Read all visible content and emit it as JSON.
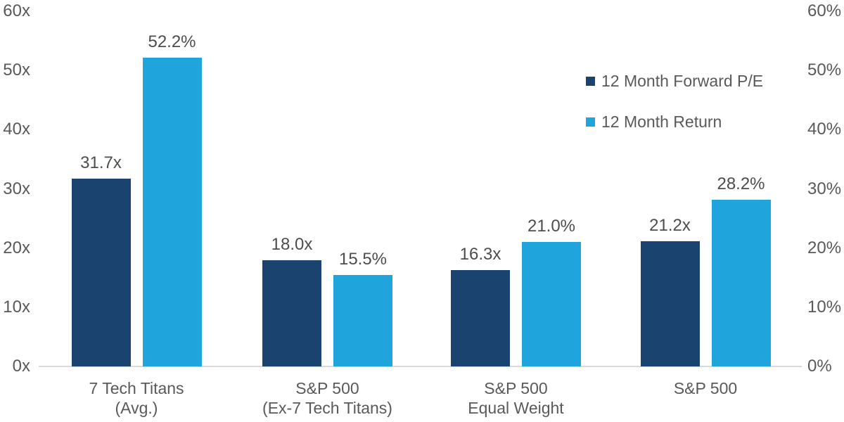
{
  "chart_data": {
    "type": "bar",
    "title": "",
    "categories": [
      "7 Tech Titans\n(Avg.)",
      "S&P 500\n(Ex-7 Tech Titans)",
      "S&P 500\nEqual Weight",
      "S&P 500"
    ],
    "series": [
      {
        "name": "12 Month Forward P/E",
        "color": "#1B4370",
        "axis": "left",
        "values": [
          31.7,
          18.0,
          16.3,
          21.2
        ],
        "value_labels": [
          "31.7x",
          "18.0x",
          "16.3x",
          "21.2x"
        ]
      },
      {
        "name": "12 Month Return",
        "color": "#20A4DC",
        "axis": "right",
        "values": [
          52.2,
          15.5,
          21.0,
          28.2
        ],
        "value_labels": [
          "52.2%",
          "15.5%",
          "21.0%",
          "28.2%"
        ]
      }
    ],
    "left_axis": {
      "min": 0,
      "max": 60,
      "tick_step": 10,
      "tick_labels": [
        "0x",
        "10x",
        "20x",
        "30x",
        "40x",
        "50x",
        "60x"
      ]
    },
    "right_axis": {
      "min": 0,
      "max": 60,
      "tick_step": 10,
      "tick_labels": [
        "0%",
        "10%",
        "20%",
        "30%",
        "40%",
        "50%",
        "60%"
      ]
    },
    "legend": {
      "position": "top-right",
      "entries": [
        "12 Month Forward P/E",
        "12 Month Return"
      ]
    },
    "grid": false
  },
  "colors": {
    "series_forward_pe": "#1B4370",
    "series_return": "#20A4DC",
    "axis_text": "#595959",
    "value_label_text": "#4D4D4D",
    "axis_line": "#D9D9D9",
    "background": "#FFFFFF"
  }
}
